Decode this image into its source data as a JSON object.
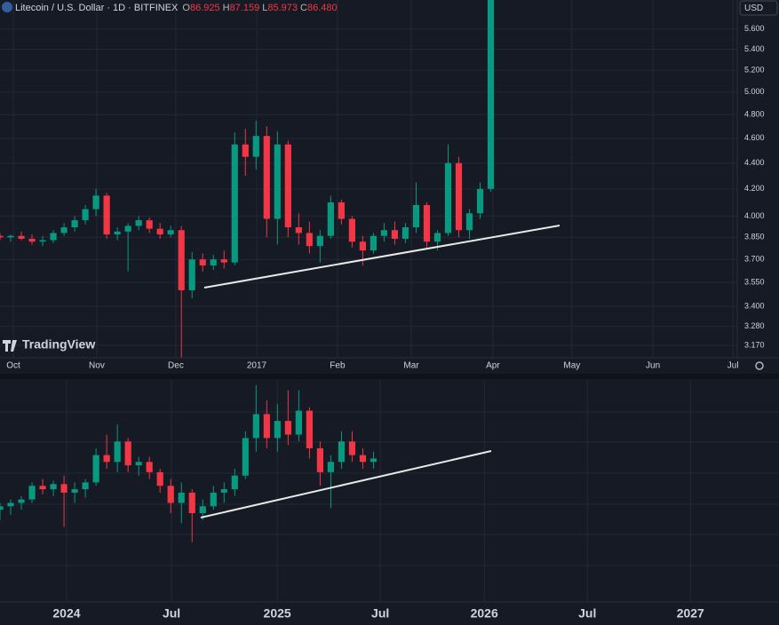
{
  "header": {
    "symbol": "Litecoin / U.S. Dollar · 1D · BITFINEX",
    "open_label": "O",
    "open": "86.925",
    "high_label": "H",
    "high": "87.159",
    "low_label": "L",
    "low": "85.973",
    "close_label": "C",
    "close": "86.480"
  },
  "currency": "USD",
  "watermark": "TradingView",
  "chart_data": [
    {
      "type": "candlestick",
      "log": true,
      "grid": true,
      "up_color": "#089981",
      "down_color": "#f23645",
      "xlim": [
        0,
        69.1
      ],
      "ylim": [
        3.1,
        5.9
      ],
      "xticks": [
        {
          "value": 1.25,
          "label": "Oct"
        },
        {
          "value": 9.07,
          "label": "Nov"
        },
        {
          "value": 16.48,
          "label": "Dec"
        },
        {
          "value": 24.06,
          "label": "2017"
        },
        {
          "value": 31.63,
          "label": "Feb"
        },
        {
          "value": 38.55,
          "label": "Mar"
        },
        {
          "value": 46.2,
          "label": "Apr"
        },
        {
          "value": 53.6,
          "label": "May"
        },
        {
          "value": 61.2,
          "label": "Jun"
        },
        {
          "value": 68.7,
          "label": "Jul"
        }
      ],
      "yticks": [
        {
          "value": 5.6,
          "label": "5.600"
        },
        {
          "value": 5.4,
          "label": "5.400"
        },
        {
          "value": 5.2,
          "label": "5.200"
        },
        {
          "value": 5.0,
          "label": "5.000"
        },
        {
          "value": 4.8,
          "label": "4.800"
        },
        {
          "value": 4.6,
          "label": "4.600"
        },
        {
          "value": 4.4,
          "label": "4.400"
        },
        {
          "value": 4.2,
          "label": "4.200"
        },
        {
          "value": 4.0,
          "label": "4.000"
        },
        {
          "value": 3.85,
          "label": "3.850"
        },
        {
          "value": 3.7,
          "label": "3.700"
        },
        {
          "value": 3.55,
          "label": "3.550"
        },
        {
          "value": 3.4,
          "label": "3.400"
        },
        {
          "value": 3.28,
          "label": "3.280"
        },
        {
          "value": 3.17,
          "label": "3.170"
        }
      ],
      "open": [
        3.86,
        3.85,
        3.86,
        3.84,
        3.82,
        3.83,
        3.88,
        3.92,
        3.97,
        4.05,
        4.15,
        3.87,
        3.89,
        3.93,
        3.97,
        3.91,
        3.87,
        3.9,
        3.5,
        3.7,
        3.66,
        3.7,
        3.68,
        4.55,
        4.45,
        4.62,
        3.98,
        4.55,
        3.92,
        3.88,
        3.79,
        3.86,
        4.1,
        3.98,
        3.82,
        3.76,
        3.86,
        3.9,
        3.84,
        3.92,
        4.08,
        3.82,
        3.88,
        4.4,
        3.9,
        4.02,
        4.2
      ],
      "high": [
        3.88,
        3.87,
        3.89,
        3.87,
        3.86,
        3.9,
        3.95,
        4.0,
        4.08,
        4.2,
        4.17,
        3.92,
        3.95,
        4.0,
        3.99,
        3.95,
        3.93,
        3.93,
        3.75,
        3.74,
        3.73,
        3.76,
        4.65,
        4.68,
        4.75,
        4.7,
        4.66,
        4.58,
        4.02,
        3.96,
        3.9,
        4.15,
        4.12,
        4.0,
        3.86,
        3.88,
        3.95,
        3.96,
        3.95,
        4.25,
        4.1,
        3.9,
        4.55,
        4.45,
        4.05,
        4.25,
        5.95
      ],
      "low": [
        3.83,
        3.82,
        3.83,
        3.8,
        3.79,
        3.81,
        3.86,
        3.89,
        3.94,
        4.0,
        3.84,
        3.83,
        3.62,
        3.9,
        3.88,
        3.84,
        3.85,
        3.1,
        3.45,
        3.62,
        3.63,
        3.64,
        3.66,
        4.3,
        4.35,
        3.85,
        3.8,
        3.85,
        3.8,
        3.74,
        3.68,
        3.84,
        3.94,
        3.78,
        3.66,
        3.74,
        3.82,
        3.8,
        3.81,
        3.88,
        3.78,
        3.76,
        3.86,
        3.85,
        3.84,
        3.98,
        4.18
      ],
      "close": [
        3.85,
        3.86,
        3.84,
        3.82,
        3.83,
        3.88,
        3.92,
        3.97,
        4.05,
        4.15,
        3.87,
        3.89,
        3.93,
        3.97,
        3.91,
        3.87,
        3.9,
        3.5,
        3.7,
        3.66,
        3.7,
        3.68,
        4.55,
        4.45,
        4.62,
        3.98,
        4.55,
        3.92,
        3.88,
        3.79,
        3.86,
        4.1,
        3.98,
        3.82,
        3.76,
        3.86,
        3.9,
        3.84,
        3.92,
        4.08,
        3.82,
        3.88,
        4.4,
        3.9,
        4.02,
        4.2,
        5.9
      ]
    },
    {
      "type": "candlestick",
      "log": false,
      "grid": true,
      "up_color": "#089981",
      "down_color": "#f23645",
      "xlim": [
        0,
        73
      ],
      "ylim": [
        14,
        144
      ],
      "xticks": [
        {
          "value": 6.24,
          "label": "2024"
        },
        {
          "value": 16.07,
          "label": "Jul"
        },
        {
          "value": 25.98,
          "label": "2025"
        },
        {
          "value": 35.64,
          "label": "Jul"
        },
        {
          "value": 45.38,
          "label": "2026"
        },
        {
          "value": 55.04,
          "label": "Jul"
        },
        {
          "value": 64.7,
          "label": "2027"
        }
      ],
      "open": [
        68,
        70,
        72,
        74,
        82,
        80,
        83,
        78,
        80,
        84,
        100,
        96,
        108,
        94,
        96,
        90,
        82,
        72,
        78,
        66,
        70,
        78,
        80,
        88,
        110,
        124,
        110,
        120,
        112,
        126,
        104,
        90,
        96,
        108,
        100,
        96
      ],
      "high": [
        72,
        74,
        76,
        84,
        86,
        85,
        88,
        84,
        86,
        104,
        112,
        118,
        110,
        99,
        99,
        92,
        86,
        84,
        80,
        74,
        82,
        84,
        92,
        114,
        141,
        132,
        130,
        138,
        138,
        128,
        108,
        100,
        114,
        114,
        104,
        102
      ],
      "low": [
        62,
        65,
        68,
        72,
        77,
        76,
        58,
        72,
        75,
        82,
        92,
        90,
        90,
        88,
        86,
        78,
        66,
        60,
        49,
        62,
        68,
        72,
        76,
        86,
        102,
        104,
        102,
        106,
        108,
        98,
        82,
        69,
        92,
        96,
        92,
        92
      ],
      "close": [
        70,
        72,
        74,
        82,
        80,
        83,
        78,
        80,
        84,
        100,
        96,
        108,
        94,
        96,
        90,
        82,
        72,
        78,
        66,
        70,
        78,
        80,
        88,
        110,
        124,
        110,
        120,
        112,
        126,
        104,
        90,
        96,
        108,
        100,
        96,
        98
      ]
    }
  ]
}
